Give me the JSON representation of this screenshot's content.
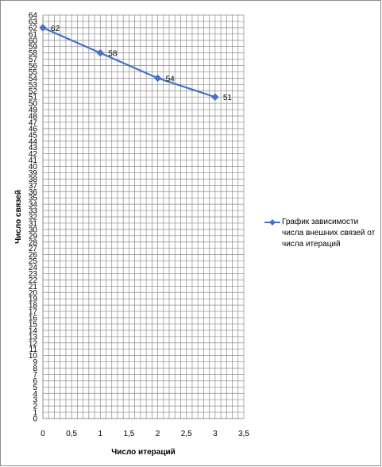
{
  "colors": {
    "series": "#4472c4",
    "grid": "#8c8c8c",
    "axis": "#8c8c8c"
  },
  "chart_data": {
    "type": "line",
    "title": "",
    "xlabel": "Число итераций",
    "ylabel": "Число связей",
    "xlim": [
      0,
      3.5
    ],
    "ylim": [
      0,
      64
    ],
    "x_ticks": [
      "0",
      "0,5",
      "1",
      "1,5",
      "2",
      "2,5",
      "3",
      "3,5"
    ],
    "y_tick_step": 1,
    "grid": true,
    "legend_position": "right",
    "series": [
      {
        "name": "График зависимости числа внешних связей от числа итераций",
        "x": [
          0,
          1,
          2,
          3
        ],
        "y": [
          62,
          58,
          54,
          51
        ],
        "data_labels": [
          "62",
          "58",
          "54",
          "51"
        ]
      }
    ]
  }
}
